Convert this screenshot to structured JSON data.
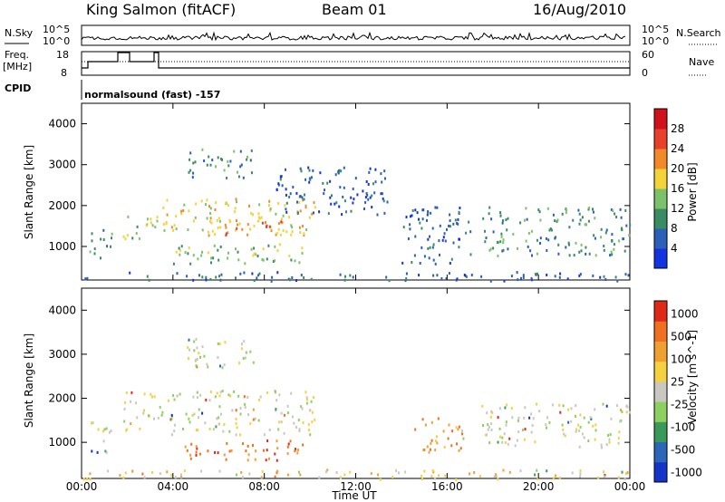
{
  "header": {
    "station": "King Salmon (fitACF)",
    "beam": "Beam 01",
    "date": "16/Aug/2010"
  },
  "top_panel": {
    "left_labels": {
      "nsky": "N.Sky",
      "freq_line1": "Freq.",
      "freq_line2": "[MHz]",
      "cpid": "CPID"
    },
    "right_labels": {
      "nsearch": "N.Search",
      "nave": "Nave"
    },
    "nsky_ticks": [
      "10^5",
      "10^0"
    ],
    "freq_ticks": [
      "18",
      "8"
    ],
    "nave_ticks": [
      "60",
      "0"
    ],
    "mode_text": "normalsound (fast) -157"
  },
  "chart_data": [
    {
      "type": "heatmap",
      "title": "",
      "ylabel": "Slant Range [km]",
      "yticks": [
        "1000",
        "2000",
        "3000",
        "4000"
      ],
      "ylim": [
        180,
        4500
      ],
      "xlim": [
        "00:00",
        "24:00"
      ],
      "colorbar": {
        "label": "Power [dB]",
        "ticks": [
          "4",
          "8",
          "12",
          "16",
          "20",
          "24",
          "28"
        ],
        "colors": [
          "#1433e0",
          "#2b5fb8",
          "#3a8c64",
          "#7cc26a",
          "#f2d33a",
          "#f28a2a",
          "#e8402a",
          "#d0101a"
        ]
      },
      "scatter_regions": [
        {
          "t0": 0.0,
          "t1": 24.0,
          "r0": 180,
          "r1": 400,
          "level": 1
        },
        {
          "t0": 0.3,
          "t1": 1.3,
          "r0": 700,
          "r1": 1500,
          "level": 2
        },
        {
          "t0": 1.8,
          "t1": 3.3,
          "r0": 1200,
          "r1": 1900,
          "level": 3
        },
        {
          "t0": 3.5,
          "t1": 10.2,
          "r0": 1300,
          "r1": 2200,
          "level": 4
        },
        {
          "t0": 5.5,
          "t1": 9.0,
          "r0": 1300,
          "r1": 1700,
          "level": 5
        },
        {
          "t0": 4.0,
          "t1": 10.0,
          "r0": 600,
          "r1": 1100,
          "level": 3
        },
        {
          "t0": 4.5,
          "t1": 7.5,
          "r0": 2700,
          "r1": 3400,
          "level": 2
        },
        {
          "t0": 8.5,
          "t1": 13.5,
          "r0": 1800,
          "r1": 3000,
          "level": 1
        },
        {
          "t0": 14.0,
          "t1": 17.0,
          "r0": 600,
          "r1": 2000,
          "level": 1
        },
        {
          "t0": 17.5,
          "t1": 24.0,
          "r0": 800,
          "r1": 2000,
          "level": 2
        }
      ]
    },
    {
      "type": "heatmap",
      "title": "",
      "ylabel": "Slant Range [km]",
      "xlabel": "Time UT",
      "xticks": [
        "00:00",
        "04:00",
        "08:00",
        "12:00",
        "16:00",
        "20:00",
        "00:00"
      ],
      "yticks": [
        "1000",
        "2000",
        "3000",
        "4000"
      ],
      "ylim": [
        180,
        4500
      ],
      "colorbar": {
        "label": "Velocity [m s^-1]",
        "ticks": [
          "1000",
          "500",
          "100",
          "25",
          "-25",
          "-100",
          "-500",
          "-1000"
        ],
        "colors": [
          "#1433c8",
          "#2c66b8",
          "#3a9a5a",
          "#8cd060",
          "#c8c8c0",
          "#f5d040",
          "#f0a030",
          "#f07020",
          "#e02818"
        ]
      },
      "scatter_regions": [
        {
          "t0": 0.0,
          "t1": 24.0,
          "r0": 180,
          "r1": 400,
          "level": 5
        },
        {
          "t0": 0.3,
          "t1": 1.3,
          "r0": 700,
          "r1": 1500,
          "level": 4
        },
        {
          "t0": 1.8,
          "t1": 10.2,
          "r0": 1200,
          "r1": 2200,
          "level": 4
        },
        {
          "t0": 4.5,
          "t1": 9.8,
          "r0": 600,
          "r1": 1100,
          "level": 7
        },
        {
          "t0": 4.5,
          "t1": 7.5,
          "r0": 2700,
          "r1": 3400,
          "level": 4
        },
        {
          "t0": 14.5,
          "t1": 16.8,
          "r0": 800,
          "r1": 1600,
          "level": 6
        },
        {
          "t0": 17.5,
          "t1": 24.0,
          "r0": 900,
          "r1": 1900,
          "level": 4
        }
      ]
    }
  ]
}
